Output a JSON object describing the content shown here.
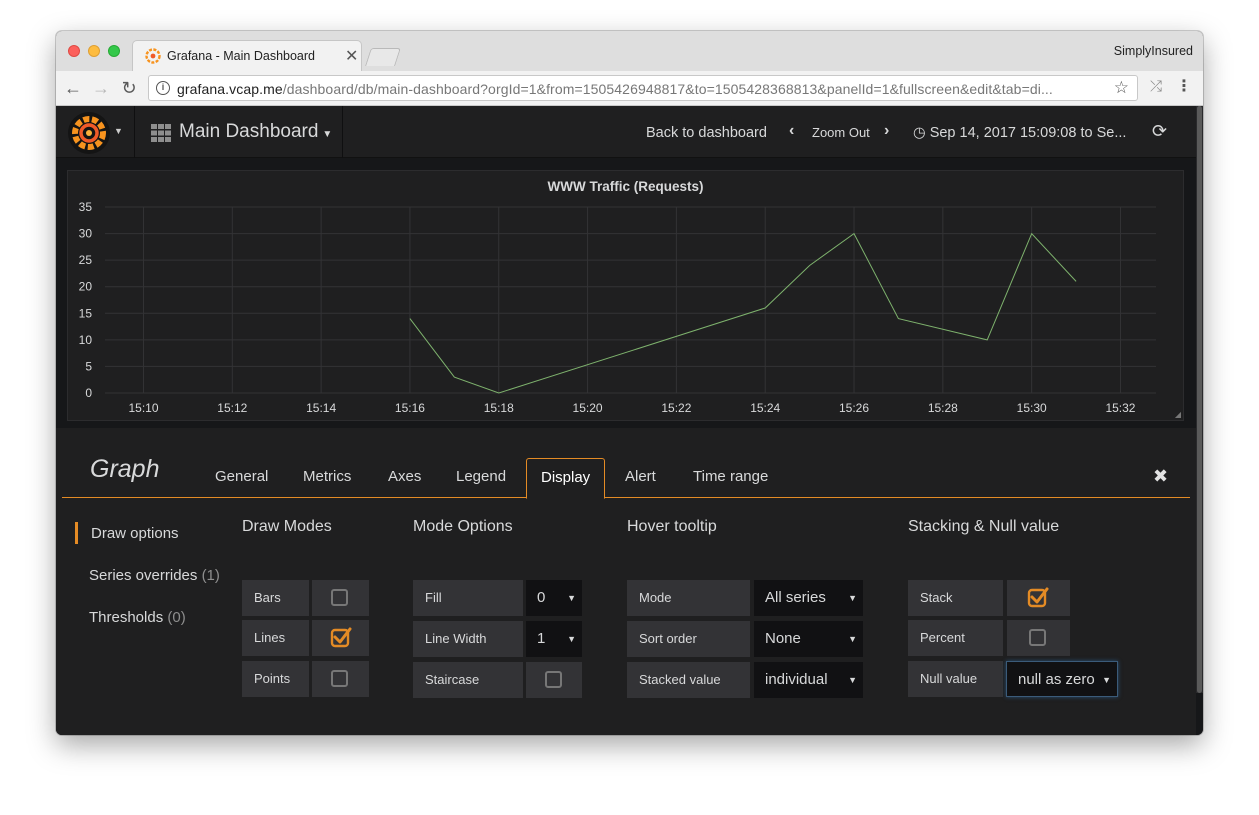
{
  "browser": {
    "tab_title": "Grafana - Main Dashboard",
    "tab_close": "✕",
    "profile_name": "SimplyInsured",
    "url_host": "grafana.vcap.me",
    "url_path": "/dashboard/db/main-dashboard?orgId=1&from=1505426948817&to=1505428368813&panelId=1&fullscreen&edit&tab=di..."
  },
  "topnav": {
    "dashboard_title": "Main Dashboard",
    "back_link": "Back to dashboard",
    "zoom_out": "Zoom Out",
    "time_range": "Sep 14, 2017 15:09:08 to Se..."
  },
  "chart_data": {
    "type": "line",
    "title": "WWW Traffic (Requests)",
    "xlabel": "",
    "ylabel": "",
    "x_ticks": [
      "15:10",
      "15:12",
      "15:14",
      "15:16",
      "15:18",
      "15:20",
      "15:22",
      "15:24",
      "15:26",
      "15:28",
      "15:30",
      "15:32"
    ],
    "y_ticks": [
      0,
      5,
      10,
      15,
      20,
      25,
      30,
      35
    ],
    "ylim": [
      0,
      35
    ],
    "xlim": [
      "15:09:08",
      "15:32:48"
    ],
    "grid": true,
    "series": [
      {
        "color": "#7eb26d",
        "x": [
          "15:16",
          "15:17",
          "15:18",
          "15:24",
          "15:25",
          "15:26",
          "15:27",
          "15:29",
          "15:30",
          "15:31"
        ],
        "y": [
          14,
          3,
          0,
          16,
          24,
          30,
          14,
          10,
          30,
          21
        ]
      }
    ]
  },
  "editor": {
    "title": "Graph",
    "tabs": [
      "General",
      "Metrics",
      "Axes",
      "Legend",
      "Display",
      "Alert",
      "Time range"
    ],
    "active_tab": "Display",
    "close_label": "✖",
    "side": {
      "draw_options": "Draw options",
      "series_overrides": "Series overrides",
      "series_overrides_count": "(1)",
      "thresholds": "Thresholds",
      "thresholds_count": "(0)"
    },
    "draw_modes": {
      "heading": "Draw Modes",
      "bars_label": "Bars",
      "bars_checked": false,
      "lines_label": "Lines",
      "lines_checked": true,
      "points_label": "Points",
      "points_checked": false
    },
    "mode_options": {
      "heading": "Mode Options",
      "fill_label": "Fill",
      "fill_value": "0",
      "line_width_label": "Line Width",
      "line_width_value": "1",
      "staircase_label": "Staircase",
      "staircase_checked": false
    },
    "hover_tooltip": {
      "heading": "Hover tooltip",
      "mode_label": "Mode",
      "mode_value": "All series",
      "sort_label": "Sort order",
      "sort_value": "None",
      "stacked_label": "Stacked value",
      "stacked_value": "individual"
    },
    "stacking": {
      "heading": "Stacking & Null value",
      "stack_label": "Stack",
      "stack_checked": true,
      "percent_label": "Percent",
      "percent_checked": false,
      "null_label": "Null value",
      "null_value": "null as zero"
    }
  },
  "colors": {
    "accent": "#e48b25",
    "series": "#7eb26d",
    "panel_bg": "#1f1f20",
    "input_bg": "#111113",
    "label_bg": "#333336"
  }
}
